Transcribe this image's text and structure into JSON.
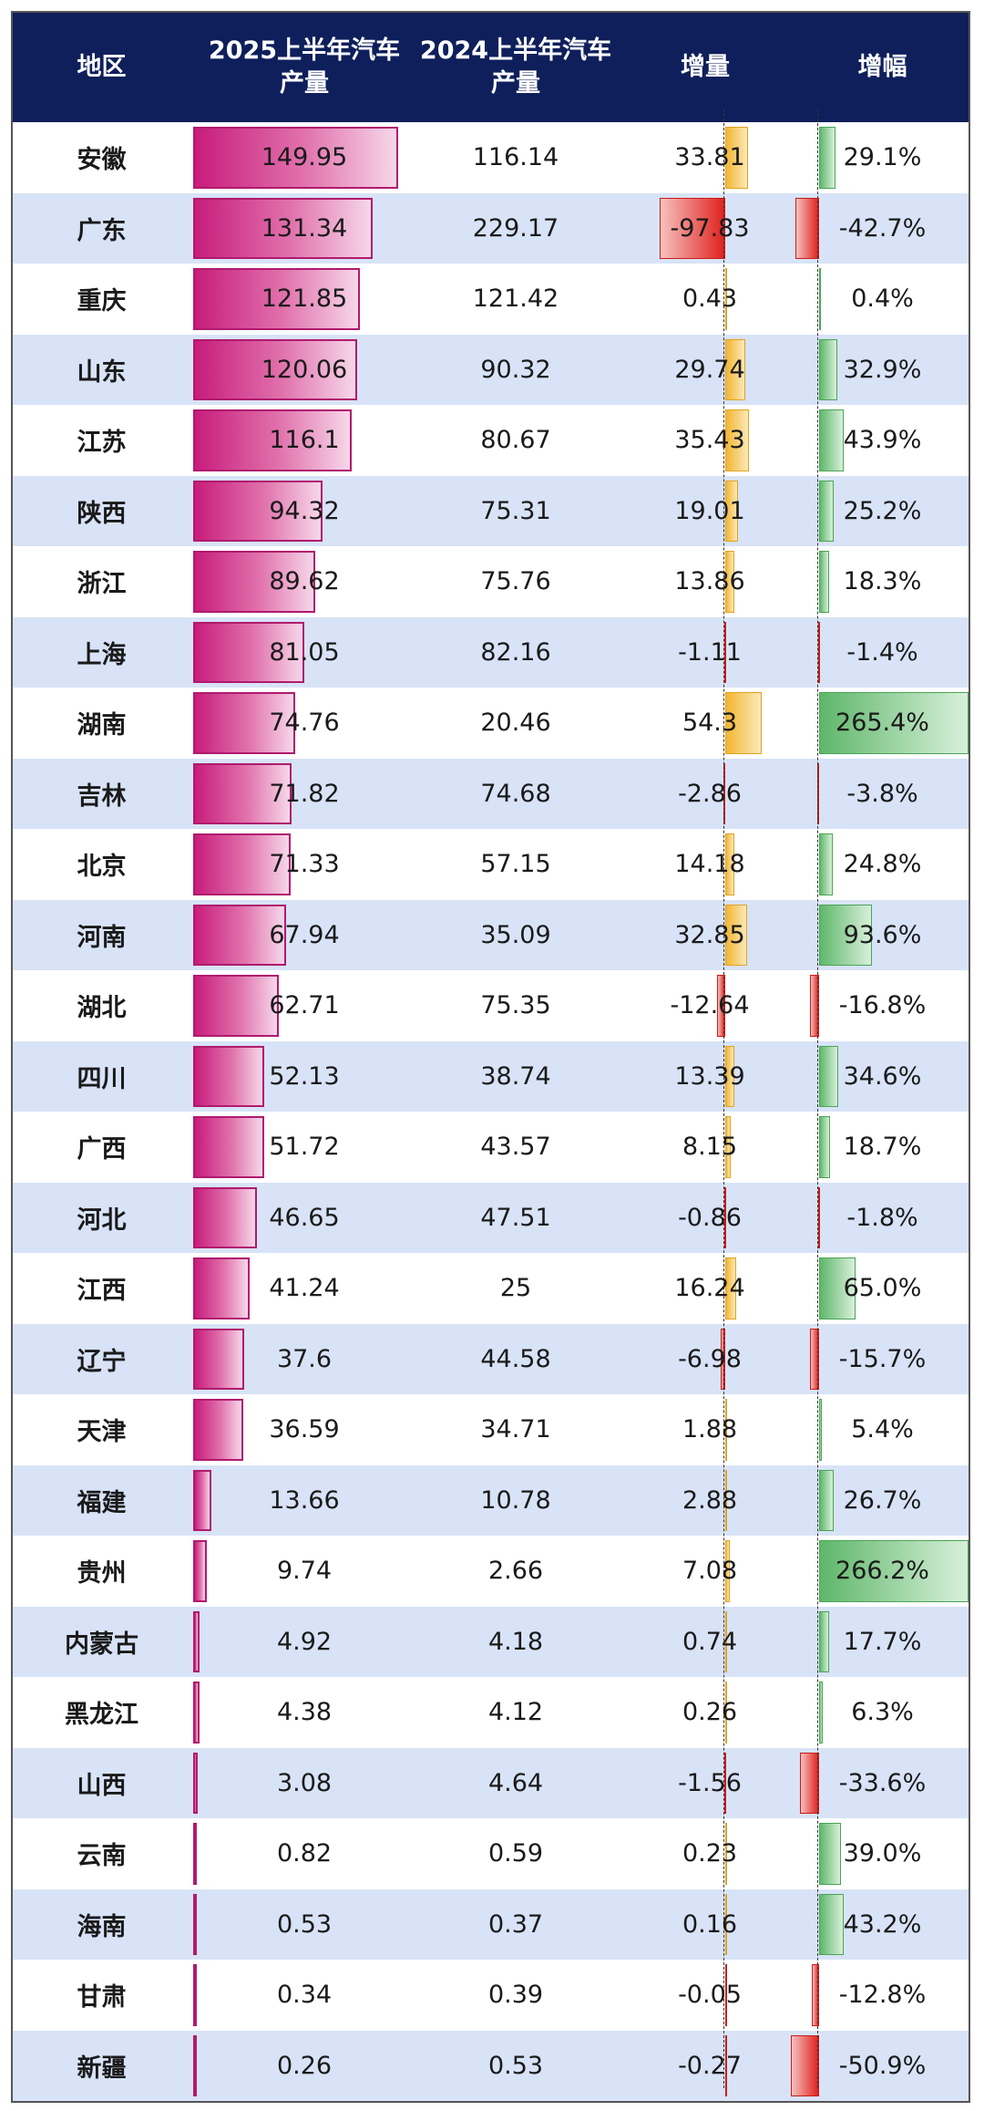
{
  "header": {
    "region": "地区",
    "prod_2025": "2025上半年汽车\n产量",
    "prod_2024": "2024上半年汽车\n产量",
    "increase": "增量",
    "growth": "增幅"
  },
  "colors": {
    "header_bg": "#0e1f5b",
    "row_alt": "#d8e3f7",
    "production_bar": "#c81c7c",
    "increase_positive": "#f2b633",
    "negative": "#e0221e",
    "growth_positive": "#5fb76b"
  },
  "chart_data": {
    "type": "table",
    "columns": [
      "地区",
      "2025上半年汽车产量",
      "2024上半年汽车产量",
      "增量",
      "增幅"
    ],
    "rows": [
      {
        "region": "安徽",
        "prod_2025": "149.95",
        "prod_2024": "116.14",
        "increase": "33.81",
        "growth": "29.1%"
      },
      {
        "region": "广东",
        "prod_2025": "131.34",
        "prod_2024": "229.17",
        "increase": "-97.83",
        "growth": "-42.7%"
      },
      {
        "region": "重庆",
        "prod_2025": "121.85",
        "prod_2024": "121.42",
        "increase": "0.43",
        "growth": "0.4%"
      },
      {
        "region": "山东",
        "prod_2025": "120.06",
        "prod_2024": "90.32",
        "increase": "29.74",
        "growth": "32.9%"
      },
      {
        "region": "江苏",
        "prod_2025": "116.1",
        "prod_2024": "80.67",
        "increase": "35.43",
        "growth": "43.9%"
      },
      {
        "region": "陕西",
        "prod_2025": "94.32",
        "prod_2024": "75.31",
        "increase": "19.01",
        "growth": "25.2%"
      },
      {
        "region": "浙江",
        "prod_2025": "89.62",
        "prod_2024": "75.76",
        "increase": "13.86",
        "growth": "18.3%"
      },
      {
        "region": "上海",
        "prod_2025": "81.05",
        "prod_2024": "82.16",
        "increase": "-1.11",
        "growth": "-1.4%"
      },
      {
        "region": "湖南",
        "prod_2025": "74.76",
        "prod_2024": "20.46",
        "increase": "54.3",
        "growth": "265.4%"
      },
      {
        "region": "吉林",
        "prod_2025": "71.82",
        "prod_2024": "74.68",
        "increase": "-2.86",
        "growth": "-3.8%"
      },
      {
        "region": "北京",
        "prod_2025": "71.33",
        "prod_2024": "57.15",
        "increase": "14.18",
        "growth": "24.8%"
      },
      {
        "region": "河南",
        "prod_2025": "67.94",
        "prod_2024": "35.09",
        "increase": "32.85",
        "growth": "93.6%"
      },
      {
        "region": "湖北",
        "prod_2025": "62.71",
        "prod_2024": "75.35",
        "increase": "-12.64",
        "growth": "-16.8%"
      },
      {
        "region": "四川",
        "prod_2025": "52.13",
        "prod_2024": "38.74",
        "increase": "13.39",
        "growth": "34.6%"
      },
      {
        "region": "广西",
        "prod_2025": "51.72",
        "prod_2024": "43.57",
        "increase": "8.15",
        "growth": "18.7%"
      },
      {
        "region": "河北",
        "prod_2025": "46.65",
        "prod_2024": "47.51",
        "increase": "-0.86",
        "growth": "-1.8%"
      },
      {
        "region": "江西",
        "prod_2025": "41.24",
        "prod_2024": "25",
        "increase": "16.24",
        "growth": "65.0%"
      },
      {
        "region": "辽宁",
        "prod_2025": "37.6",
        "prod_2024": "44.58",
        "increase": "-6.98",
        "growth": "-15.7%"
      },
      {
        "region": "天津",
        "prod_2025": "36.59",
        "prod_2024": "34.71",
        "increase": "1.88",
        "growth": "5.4%"
      },
      {
        "region": "福建",
        "prod_2025": "13.66",
        "prod_2024": "10.78",
        "increase": "2.88",
        "growth": "26.7%"
      },
      {
        "region": "贵州",
        "prod_2025": "9.74",
        "prod_2024": "2.66",
        "increase": "7.08",
        "growth": "266.2%"
      },
      {
        "region": "内蒙古",
        "prod_2025": "4.92",
        "prod_2024": "4.18",
        "increase": "0.74",
        "growth": "17.7%"
      },
      {
        "region": "黑龙江",
        "prod_2025": "4.38",
        "prod_2024": "4.12",
        "increase": "0.26",
        "growth": "6.3%"
      },
      {
        "region": "山西",
        "prod_2025": "3.08",
        "prod_2024": "4.64",
        "increase": "-1.56",
        "growth": "-33.6%"
      },
      {
        "region": "云南",
        "prod_2025": "0.82",
        "prod_2024": "0.59",
        "increase": "0.23",
        "growth": "39.0%"
      },
      {
        "region": "海南",
        "prod_2025": "0.53",
        "prod_2024": "0.37",
        "increase": "0.16",
        "growth": "43.2%"
      },
      {
        "region": "甘肃",
        "prod_2025": "0.34",
        "prod_2024": "0.39",
        "increase": "-0.05",
        "growth": "-12.8%"
      },
      {
        "region": "新疆",
        "prod_2025": "0.26",
        "prod_2024": "0.53",
        "increase": "-0.27",
        "growth": "-50.9%"
      }
    ]
  }
}
